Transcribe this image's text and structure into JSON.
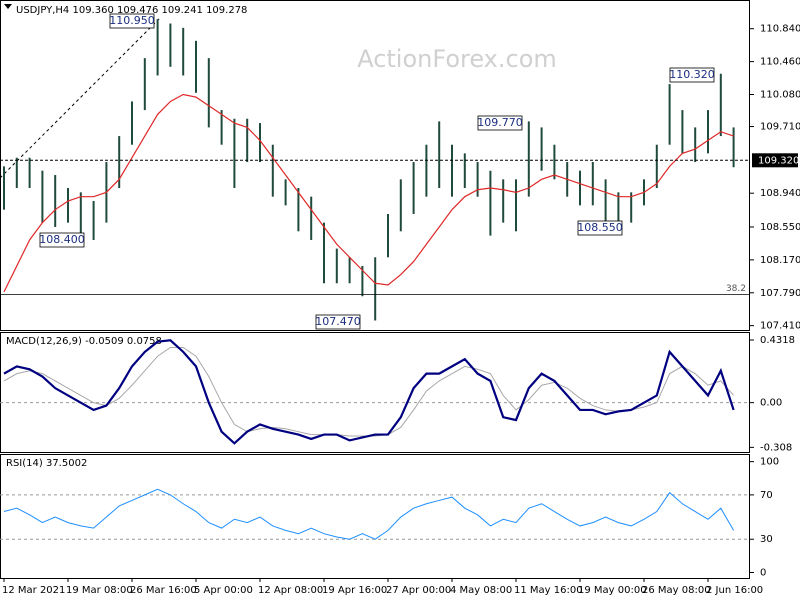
{
  "chart_data": [
    {
      "type": "hilo",
      "title": "USDJPY,H4 109.360 109.476 109.241 109.278",
      "watermark": "ActionForex.com",
      "categories": [
        "12 Mar 2021",
        null,
        null,
        null,
        null,
        "19 Mar 08:00",
        null,
        null,
        null,
        null,
        "26 Mar 16:00",
        null,
        null,
        null,
        null,
        "5 Apr 00:00",
        null,
        null,
        null,
        null,
        "12 Apr 08:00",
        null,
        null,
        null,
        null,
        "19 Apr 16:00",
        null,
        null,
        null,
        null,
        "27 Apr 00:00",
        null,
        null,
        null,
        null,
        "4 May 08:00",
        null,
        null,
        null,
        null,
        "11 May 16:00",
        null,
        null,
        null,
        null,
        "19 May 00:00",
        null,
        null,
        null,
        null,
        "26 May 08:00",
        null,
        null,
        null,
        null,
        "2 Jun 16:00",
        null,
        null
      ],
      "color": "#1f4a3c",
      "high": [
        109.25,
        109.35,
        109.35,
        109.2,
        109.15,
        109.0,
        108.95,
        108.85,
        109.3,
        109.6,
        110.0,
        110.5,
        110.95,
        110.9,
        110.85,
        110.7,
        110.5,
        109.9,
        109.8,
        109.8,
        109.75,
        109.5,
        109.1,
        109.0,
        108.9,
        108.6,
        108.3,
        108.2,
        108.1,
        108.2,
        108.7,
        109.1,
        109.3,
        109.5,
        109.77,
        109.5,
        109.4,
        109.3,
        109.2,
        109.1,
        109.1,
        109.77,
        109.7,
        109.5,
        109.3,
        109.2,
        109.3,
        109.1,
        108.95,
        108.95,
        109.1,
        109.5,
        110.2,
        109.9,
        109.7,
        109.9,
        110.32,
        109.7
      ],
      "low": [
        108.75,
        109.0,
        109.0,
        108.6,
        108.55,
        108.6,
        108.45,
        108.4,
        108.6,
        109.0,
        109.5,
        109.9,
        110.3,
        110.4,
        110.3,
        110.1,
        109.7,
        109.5,
        109.0,
        109.3,
        109.3,
        108.9,
        108.8,
        108.5,
        108.4,
        107.9,
        107.9,
        107.9,
        107.75,
        107.47,
        108.2,
        108.5,
        108.7,
        108.9,
        109.0,
        108.9,
        109.0,
        108.9,
        108.45,
        108.6,
        108.5,
        108.9,
        109.2,
        109.1,
        108.9,
        108.8,
        108.8,
        108.55,
        108.6,
        108.6,
        108.8,
        109.0,
        109.5,
        109.4,
        109.3,
        109.4,
        109.6,
        109.24
      ],
      "ma": {
        "color": "#e02828",
        "values": [
          107.8,
          108.1,
          108.4,
          108.6,
          108.75,
          108.85,
          108.9,
          108.9,
          108.95,
          109.1,
          109.35,
          109.6,
          109.85,
          110.0,
          110.08,
          110.05,
          109.95,
          109.85,
          109.75,
          109.7,
          109.55,
          109.35,
          109.15,
          108.95,
          108.75,
          108.55,
          108.35,
          108.2,
          108.05,
          107.9,
          107.88,
          108.0,
          108.15,
          108.35,
          108.55,
          108.75,
          108.9,
          108.98,
          109.0,
          108.98,
          108.95,
          109.0,
          109.1,
          109.15,
          109.1,
          109.05,
          109.0,
          108.95,
          108.9,
          108.9,
          108.95,
          109.05,
          109.25,
          109.4,
          109.45,
          109.55,
          109.65,
          109.6
        ]
      },
      "ylim": [
        107.36,
        111.16
      ],
      "yticks": [
        {
          "value": 110.84,
          "label": "110.840"
        },
        {
          "value": 110.46,
          "label": "110.460"
        },
        {
          "value": 110.08,
          "label": "110.080"
        },
        {
          "value": 109.71,
          "label": "109.710"
        },
        {
          "value": 108.94,
          "label": "108.940"
        },
        {
          "value": 108.55,
          "label": "108.550"
        },
        {
          "value": 108.17,
          "label": "108.170"
        },
        {
          "value": 107.79,
          "label": "107.790"
        },
        {
          "value": 107.41,
          "label": "107.410"
        }
      ],
      "last_price": {
        "value": 109.32,
        "label": "109.320"
      },
      "fib_level": {
        "value": 107.77,
        "label": "38.2"
      },
      "annotations": [
        "110.950",
        "108.400",
        "107.470",
        "109.770",
        "108.550",
        "110.320"
      ]
    },
    {
      "type": "lines",
      "title": "MACD(12,26,9) -0.0509 0.0758",
      "series": [
        {
          "name": "MACD",
          "color": "#000080",
          "values": [
            0.2,
            0.25,
            0.23,
            0.18,
            0.1,
            0.05,
            0.0,
            -0.05,
            -0.02,
            0.1,
            0.25,
            0.35,
            0.42,
            0.43,
            0.35,
            0.25,
            0.0,
            -0.2,
            -0.28,
            -0.2,
            -0.15,
            -0.18,
            -0.2,
            -0.22,
            -0.25,
            -0.22,
            -0.22,
            -0.26,
            -0.24,
            -0.22,
            -0.22,
            -0.1,
            0.1,
            0.2,
            0.2,
            0.25,
            0.3,
            0.2,
            0.15,
            -0.1,
            -0.12,
            0.1,
            0.2,
            0.15,
            0.05,
            -0.05,
            -0.05,
            -0.08,
            -0.06,
            -0.05,
            0.0,
            0.05,
            0.35,
            0.25,
            0.15,
            0.05,
            0.22,
            -0.05
          ]
        },
        {
          "name": "Signal",
          "color": "#a8a8a8",
          "values": [
            0.15,
            0.2,
            0.22,
            0.2,
            0.15,
            0.1,
            0.05,
            0.0,
            -0.02,
            0.03,
            0.12,
            0.22,
            0.32,
            0.38,
            0.38,
            0.32,
            0.18,
            0.0,
            -0.15,
            -0.2,
            -0.18,
            -0.17,
            -0.18,
            -0.2,
            -0.22,
            -0.22,
            -0.22,
            -0.23,
            -0.23,
            -0.23,
            -0.22,
            -0.17,
            -0.05,
            0.08,
            0.15,
            0.2,
            0.25,
            0.23,
            0.2,
            0.05,
            -0.05,
            0.02,
            0.12,
            0.14,
            0.1,
            0.03,
            -0.02,
            -0.05,
            -0.06,
            -0.05,
            -0.03,
            0.0,
            0.2,
            0.25,
            0.2,
            0.12,
            0.15,
            0.05
          ]
        }
      ],
      "ylim": [
        -0.34,
        0.48
      ],
      "yticks": [
        0.4318,
        {
          "value": 0,
          "label": "0.00"
        },
        -0.308
      ],
      "levels": [
        0
      ]
    },
    {
      "type": "lines",
      "title": "RSI(14) 37.5002",
      "series": [
        {
          "name": "RSI",
          "color": "#1e8fff",
          "values": [
            55,
            58,
            52,
            45,
            50,
            45,
            42,
            40,
            50,
            60,
            65,
            70,
            75,
            70,
            62,
            55,
            45,
            40,
            48,
            45,
            50,
            42,
            38,
            35,
            40,
            35,
            32,
            30,
            35,
            30,
            38,
            50,
            58,
            62,
            65,
            68,
            58,
            52,
            42,
            48,
            45,
            58,
            62,
            55,
            48,
            42,
            45,
            50,
            45,
            42,
            48,
            55,
            72,
            62,
            55,
            48,
            58,
            38
          ]
        }
      ],
      "ylim": [
        -5,
        106
      ],
      "yticks": [
        100,
        70,
        30,
        0
      ],
      "levels": [
        70,
        30
      ]
    }
  ]
}
